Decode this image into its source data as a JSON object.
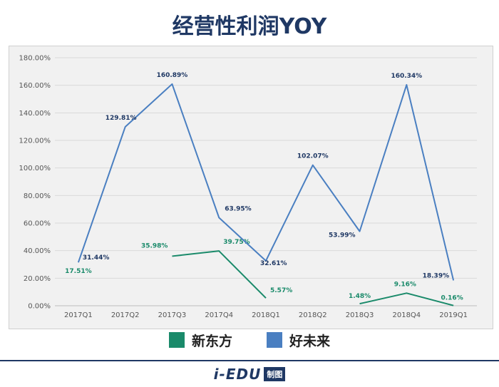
{
  "title": "经营性利润YOY",
  "colors": {
    "xdf": "#1a8a6a",
    "tal": "#4a7fc1",
    "title": "#1f3864"
  },
  "chart_data": {
    "type": "line",
    "title": "经营性利润YOY",
    "categories": [
      "2017Q1",
      "2017Q2",
      "2017Q3",
      "2017Q4",
      "2018Q1",
      "2018Q2",
      "2018Q3",
      "2018Q4",
      "2019Q1"
    ],
    "ylim": [
      0,
      180
    ],
    "yticks": [
      0,
      20,
      40,
      60,
      80,
      100,
      120,
      140,
      160,
      180
    ],
    "ytick_labels": [
      "0.00%",
      "20.00%",
      "40.00%",
      "60.00%",
      "80.00%",
      "100.00%",
      "120.00%",
      "140.00%",
      "160.00%",
      "180.00%"
    ],
    "grid": true,
    "legend_position": "bottom",
    "series": [
      {
        "name": "新东方",
        "color": "#1a8a6a",
        "values": [
          17.51,
          null,
          35.98,
          39.75,
          5.57,
          null,
          1.48,
          9.16,
          0.16
        ],
        "labels": [
          "17.51%",
          "",
          "35.98%",
          "39.75%",
          "5.57%",
          "",
          "1.48%",
          "9.16%",
          "0.16%"
        ]
      },
      {
        "name": "好未来",
        "color": "#4a7fc1",
        "values": [
          31.44,
          129.81,
          160.89,
          63.95,
          32.61,
          102.07,
          53.99,
          160.34,
          18.39
        ],
        "labels": [
          "31.44%",
          "129.81%",
          "160.89%",
          "63.95%",
          "32.61%",
          "102.07%",
          "53.99%",
          "160.34%",
          "18.39%"
        ]
      }
    ]
  },
  "legend": [
    {
      "label": "新东方",
      "color": "#1a8a6a"
    },
    {
      "label": "好未来",
      "color": "#4a7fc1"
    }
  ],
  "footer": {
    "brand": "i-EDU",
    "box": "制图"
  }
}
